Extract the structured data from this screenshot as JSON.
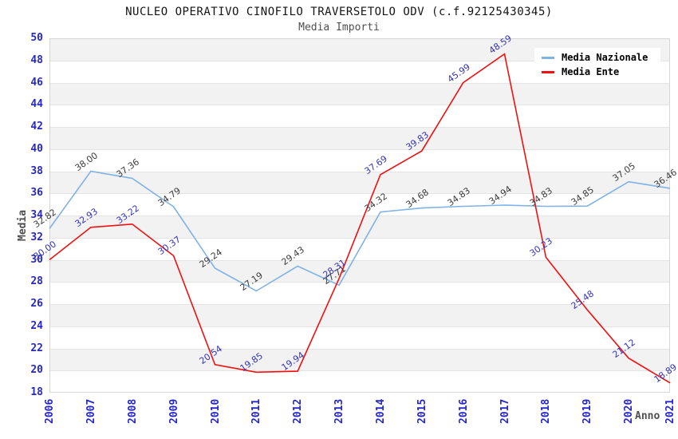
{
  "title": "NUCLEO OPERATIVO CINOFILO TRAVERSETOLO ODV (c.f.92125430345)",
  "subtitle": "Media Importi",
  "chart_data": {
    "type": "line",
    "x": [
      2006,
      2007,
      2008,
      2009,
      2010,
      2011,
      2012,
      2013,
      2014,
      2015,
      2016,
      2017,
      2018,
      2019,
      2020,
      2021
    ],
    "series": [
      {
        "name": "Media Nazionale",
        "color": "#7fb2e5",
        "label_color": "#3c3c3c",
        "values": [
          32.82,
          38.0,
          37.36,
          34.79,
          29.24,
          27.19,
          29.43,
          27.71,
          34.32,
          34.68,
          34.83,
          34.94,
          34.83,
          34.85,
          37.05,
          36.46
        ]
      },
      {
        "name": "Media Ente",
        "color": "#ee1111",
        "label_color": "#3434bb",
        "values": [
          30.0,
          32.93,
          33.22,
          30.37,
          20.54,
          19.85,
          19.94,
          28.31,
          37.69,
          39.83,
          45.99,
          48.59,
          30.23,
          25.48,
          21.12,
          18.89
        ]
      }
    ],
    "xlabel": "Anno",
    "ylabel": "Media",
    "ylim": [
      18,
      50
    ],
    "ytick_step": 2,
    "grid": "horizontal-bands",
    "legend_position": "top-right",
    "value_labels_decimals": 2
  },
  "colors": {
    "tick": "#2626cc",
    "band": "#f2f2f2",
    "gridline": "#e4e4e4",
    "plot_border": "#d6d6d6",
    "background": "#ffffff",
    "title": "#151515",
    "axis_name": "#4f4f4f"
  }
}
